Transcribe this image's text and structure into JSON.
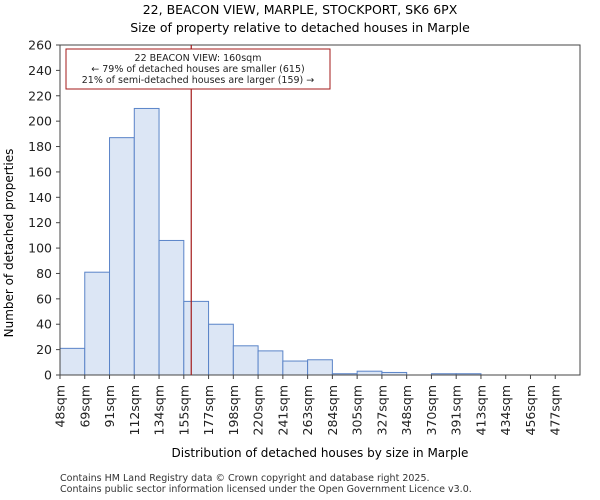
{
  "chart_data": {
    "type": "bar",
    "title_line1": "22, BEACON VIEW, MARPLE, STOCKPORT, SK6 6PX",
    "title_line2": "Size of property relative to detached houses in Marple",
    "xlabel": "Distribution of detached houses by size in Marple",
    "ylabel": "Number of detached properties",
    "ylim": [
      0,
      260
    ],
    "yticks": [
      0,
      20,
      40,
      60,
      80,
      100,
      120,
      140,
      160,
      180,
      200,
      220,
      240,
      260
    ],
    "categories": [
      "48sqm",
      "69sqm",
      "91sqm",
      "112sqm",
      "134sqm",
      "155sqm",
      "177sqm",
      "198sqm",
      "220sqm",
      "241sqm",
      "263sqm",
      "284sqm",
      "305sqm",
      "327sqm",
      "348sqm",
      "370sqm",
      "391sqm",
      "413sqm",
      "434sqm",
      "456sqm",
      "477sqm"
    ],
    "values": [
      21,
      81,
      187,
      210,
      106,
      58,
      40,
      23,
      19,
      11,
      12,
      1,
      3,
      2,
      0,
      1,
      1,
      0,
      0,
      0,
      0
    ],
    "bar_color": "#dce6f5",
    "bar_edge_color": "#5a84c8",
    "marker": {
      "bin_position": 5.3,
      "color": "#a31a1a",
      "label_line1": "22 BEACON VIEW: 160sqm",
      "label_line2": "← 79% of detached houses are smaller (615)",
      "label_line3": "21% of semi-detached houses are larger (159) →"
    }
  },
  "footer": {
    "line1": "Contains HM Land Registry data © Crown copyright and database right 2025.",
    "line2": "Contains public sector information licensed under the Open Government Licence v3.0."
  }
}
